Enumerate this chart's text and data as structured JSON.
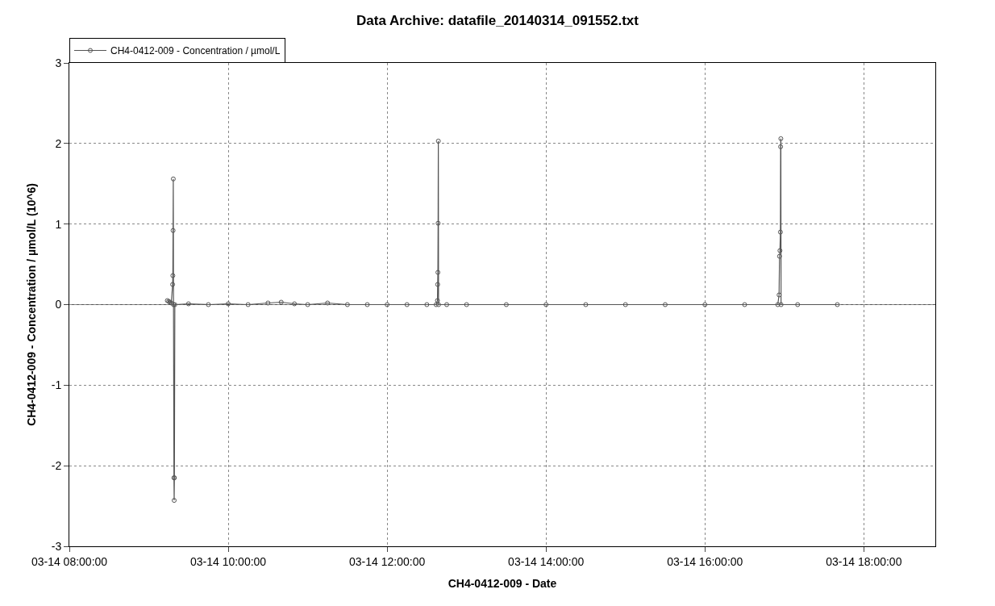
{
  "chart_data": {
    "type": "line",
    "title": "Data Archive: datafile_20140314_091552.txt",
    "xlabel": "CH4-0412-009 - Date",
    "ylabel": "CH4-0412-009 - Concentration / µmol/L (10^6)",
    "x": [
      "--03-14T09:14",
      "--03-14T09:15",
      "--03-14T09:16",
      "--03-14T09:17",
      "--03-14T09:18:00",
      "--03-14T09:18:10",
      "--03-14T09:18:20",
      "--03-14T09:18:30",
      "--03-14T09:18:40",
      "--03-14T09:19:00",
      "--03-14T09:19:10",
      "--03-14T09:19:20",
      "--03-14T09:19:40",
      "--03-14T09:30",
      "--03-14T09:45",
      "--03-14T10:00",
      "--03-14T10:15",
      "--03-14T10:30",
      "--03-14T10:40",
      "--03-14T10:50",
      "--03-14T11:00",
      "--03-14T11:15",
      "--03-14T11:30",
      "--03-14T11:45",
      "--03-14T12:00",
      "--03-14T12:15",
      "--03-14T12:30",
      "--03-14T12:37",
      "--03-14T12:38:00",
      "--03-14T12:38:10",
      "--03-14T12:38:20",
      "--03-14T12:38:30",
      "--03-14T12:38:40",
      "--03-14T12:38:50",
      "--03-14T12:45",
      "--03-14T13:00",
      "--03-14T13:30",
      "--03-14T14:00",
      "--03-14T14:30",
      "--03-14T15:00",
      "--03-14T15:30",
      "--03-14T16:00",
      "--03-14T16:30",
      "--03-14T16:55",
      "--03-14T16:56:00",
      "--03-14T16:56:20",
      "--03-14T16:56:40",
      "--03-14T16:57:00",
      "--03-14T16:57:10",
      "--03-14T16:57:20",
      "--03-14T16:57:30",
      "--03-14T17:10",
      "--03-14T17:40"
    ],
    "series": [
      {
        "name": "CH4-0412-009 - Concentration / µmol/L",
        "color": "#555555",
        "values": [
          0.05,
          0.04,
          0.03,
          0.02,
          0.25,
          0.36,
          0.92,
          1.56,
          0.0,
          -2.15,
          -2.43,
          -2.15,
          0.0,
          0.01,
          0.0,
          0.01,
          0.0,
          0.02,
          0.03,
          0.01,
          0.0,
          0.02,
          0.0,
          0.0,
          0.0,
          0.0,
          0.0,
          0.0,
          0.05,
          0.25,
          0.4,
          1.01,
          2.03,
          0.0,
          0.0,
          0.0,
          0.0,
          0.0,
          0.0,
          0.0,
          0.0,
          0.0,
          0.0,
          0.0,
          0.12,
          0.6,
          0.67,
          0.9,
          1.96,
          2.06,
          0.0,
          0.0,
          0.0
        ]
      }
    ],
    "xlim": [
      "--03-14T08:00",
      "--03-14T18:54"
    ],
    "xticks": [
      {
        "value": "--03-14T08:00",
        "label": "03-14 08:00:00"
      },
      {
        "value": "--03-14T10:00",
        "label": "03-14 10:00:00"
      },
      {
        "value": "--03-14T12:00",
        "label": "03-14 12:00:00"
      },
      {
        "value": "--03-14T14:00",
        "label": "03-14 14:00:00"
      },
      {
        "value": "--03-14T16:00",
        "label": "03-14 16:00:00"
      },
      {
        "value": "--03-14T18:00",
        "label": "03-14 18:00:00"
      }
    ],
    "ylim": [
      -3,
      3
    ],
    "yticks": [
      -3,
      -2,
      -1,
      0,
      1,
      2,
      3
    ],
    "ref_lines": [
      {
        "axis": "y",
        "value": 0,
        "color": "#555555"
      }
    ],
    "grid": true,
    "legend": "top left",
    "marker": "circle",
    "line_style": "solid"
  }
}
